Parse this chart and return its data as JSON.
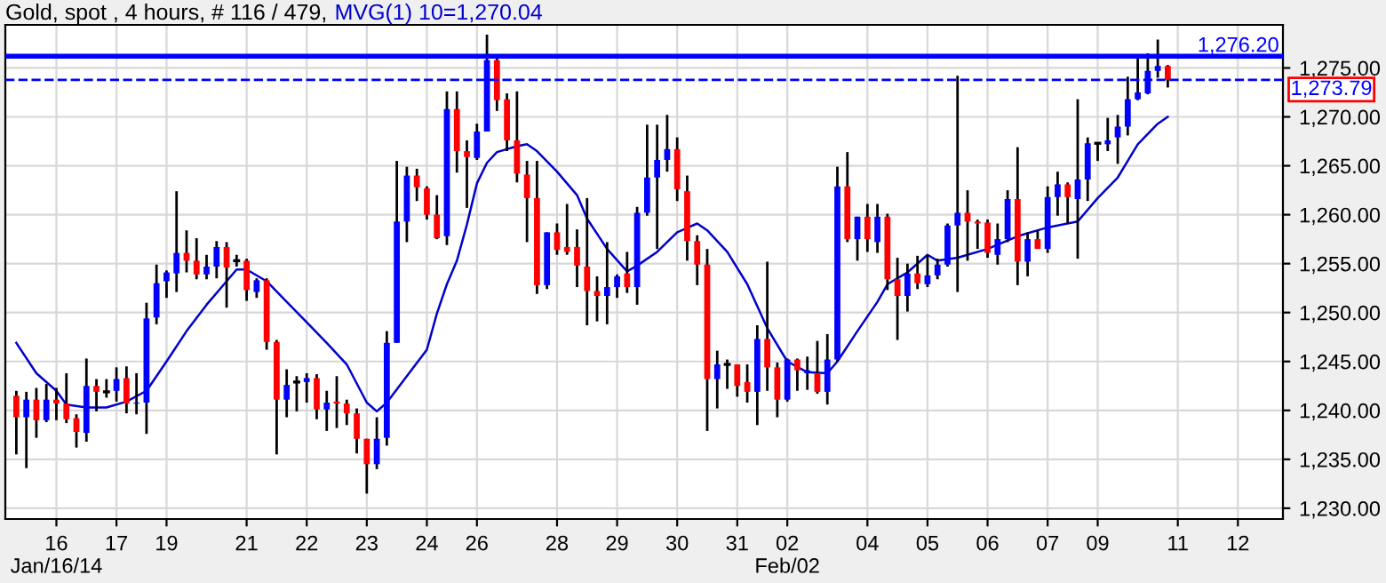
{
  "chart_data": {
    "type": "candlestick",
    "title": "Gold, spot , 4 hours, # 116 / 479,",
    "categories": [
      null,
      null,
      null,
      null,
      "16\nJan/16/14",
      null,
      null,
      null,
      null,
      null,
      "17",
      null,
      null,
      null,
      null,
      "19",
      null,
      null,
      null,
      null,
      null,
      null,
      null,
      "21",
      null,
      null,
      null,
      null,
      null,
      "22",
      null,
      null,
      null,
      null,
      null,
      "23",
      null,
      null,
      null,
      null,
      null,
      "24",
      null,
      null,
      null,
      null,
      "26",
      null,
      null,
      null,
      null,
      null,
      null,
      null,
      "28",
      null,
      null,
      null,
      null,
      null,
      "29",
      null,
      null,
      null,
      null,
      null,
      "30",
      null,
      null,
      null,
      null,
      null,
      "31",
      null,
      null,
      null,
      null,
      "02\nFeb/02",
      null,
      null,
      null,
      null,
      null,
      null,
      null,
      "04",
      null,
      null,
      null,
      null,
      null,
      "05",
      null,
      null,
      null,
      null,
      null,
      "06",
      null,
      null,
      null,
      null,
      null,
      "07",
      null,
      null,
      null,
      null,
      "09",
      null,
      null,
      null,
      null,
      null,
      null,
      null,
      "11",
      null,
      null,
      null,
      null,
      null,
      "12",
      null,
      null,
      null,
      null
    ],
    "ohlc": [
      [
        1241.5,
        1242.0,
        1235.5,
        1239.3
      ],
      [
        1239.3,
        1241.9,
        1234.1,
        1241.1
      ],
      [
        1241.1,
        1242.3,
        1237.2,
        1239.0
      ],
      [
        1239.0,
        1242.7,
        1238.8,
        1241.1
      ],
      [
        1241.1,
        1242.3,
        1239.0,
        1240.7
      ],
      [
        1240.7,
        1243.8,
        1238.7,
        1239.1
      ],
      [
        1239.2,
        1239.6,
        1236.2,
        1237.8
      ],
      [
        1237.7,
        1245.3,
        1236.8,
        1242.5
      ],
      [
        1242.5,
        1243.2,
        1239.9,
        1241.9
      ],
      [
        1241.9,
        1243.2,
        1241.3,
        1241.9
      ],
      [
        1242.0,
        1244.4,
        1240.9,
        1243.2
      ],
      [
        1243.3,
        1244.5,
        1239.7,
        1240.7
      ],
      [
        1240.7,
        1243.8,
        1239.6,
        1240.8
      ],
      [
        1240.8,
        1251.0,
        1237.6,
        1249.4
      ],
      [
        1249.5,
        1254.9,
        1248.8,
        1253.0
      ],
      [
        1253.2,
        1254.3,
        1251.5,
        1254.1
      ],
      [
        1254.0,
        1262.4,
        1252.1,
        1256.1
      ],
      [
        1256.1,
        1258.4,
        1254.1,
        1255.3
      ],
      [
        1255.3,
        1257.6,
        1253.4,
        1253.9
      ],
      [
        1253.9,
        1255.9,
        1253.4,
        1254.7
      ],
      [
        1254.7,
        1257.3,
        1253.5,
        1256.7
      ],
      [
        1256.7,
        1257.2,
        1250.5,
        1254.6
      ],
      [
        1255.3,
        1255.9,
        1254.7,
        1255.3
      ],
      [
        1255.3,
        1255.5,
        1251.2,
        1252.3
      ],
      [
        1252.1,
        1253.5,
        1251.5,
        1253.3
      ],
      [
        1253.3,
        1253.5,
        1246.2,
        1247.0
      ],
      [
        1247.0,
        1247.2,
        1235.5,
        1241.1
      ],
      [
        1241.1,
        1244.2,
        1239.3,
        1242.6
      ],
      [
        1242.9,
        1243.5,
        1239.9,
        1242.9
      ],
      [
        1242.9,
        1243.8,
        1240.8,
        1243.3
      ],
      [
        1243.3,
        1243.7,
        1239.1,
        1240.1
      ],
      [
        1240.1,
        1242.0,
        1237.9,
        1240.8
      ],
      [
        1240.9,
        1243.5,
        1238.2,
        1240.7
      ],
      [
        1240.7,
        1241.1,
        1238.5,
        1239.7
      ],
      [
        1239.7,
        1240.2,
        1235.6,
        1237.1
      ],
      [
        1237.1,
        1237.1,
        1231.5,
        1234.5
      ],
      [
        1234.5,
        1239.3,
        1234.0,
        1237.1
      ],
      [
        1237.2,
        1248.1,
        1236.4,
        1246.9
      ],
      [
        1246.9,
        1265.5,
        1246.9,
        1259.3
      ],
      [
        1259.3,
        1264.9,
        1257.2,
        1264.0
      ],
      [
        1264.0,
        1264.7,
        1261.4,
        1262.8
      ],
      [
        1262.7,
        1262.9,
        1259.5,
        1260.0
      ],
      [
        1260.0,
        1262.0,
        1257.5,
        1257.6
      ],
      [
        1257.8,
        1272.6,
        1256.9,
        1270.8
      ],
      [
        1270.8,
        1272.6,
        1264.3,
        1266.5
      ],
      [
        1266.5,
        1267.6,
        1260.7,
        1265.9
      ],
      [
        1265.8,
        1269.3,
        1265.6,
        1268.5
      ],
      [
        1268.5,
        1278.4,
        1268.5,
        1275.8
      ],
      [
        1275.8,
        1276.4,
        1270.6,
        1271.7
      ],
      [
        1271.8,
        1272.4,
        1266.5,
        1267.6
      ],
      [
        1267.6,
        1272.6,
        1263.3,
        1264.2
      ],
      [
        1264.1,
        1265.5,
        1257.2,
        1261.7
      ],
      [
        1261.7,
        1265.5,
        1251.9,
        1252.8
      ],
      [
        1252.8,
        1258.2,
        1252.4,
        1258.2
      ],
      [
        1258.2,
        1259.1,
        1255.9,
        1256.4
      ],
      [
        1256.7,
        1261.1,
        1255.9,
        1256.2
      ],
      [
        1256.7,
        1258.5,
        1252.6,
        1254.8
      ],
      [
        1254.7,
        1261.7,
        1248.7,
        1252.2
      ],
      [
        1252.2,
        1253.7,
        1249.1,
        1251.7
      ],
      [
        1251.7,
        1257.2,
        1248.8,
        1252.6
      ],
      [
        1252.6,
        1253.9,
        1251.5,
        1253.7
      ],
      [
        1254.0,
        1256.2,
        1252.0,
        1252.6
      ],
      [
        1252.6,
        1260.8,
        1250.8,
        1260.2
      ],
      [
        1260.2,
        1269.2,
        1259.9,
        1263.8
      ],
      [
        1263.8,
        1269.2,
        1256.5,
        1265.6
      ],
      [
        1265.6,
        1270.2,
        1264.4,
        1266.7
      ],
      [
        1266.7,
        1267.9,
        1261.4,
        1262.6
      ],
      [
        1262.4,
        1264.0,
        1255.3,
        1257.3
      ],
      [
        1257.3,
        1257.9,
        1252.8,
        1254.9
      ],
      [
        1254.9,
        1256.5,
        1237.9,
        1243.2
      ],
      [
        1243.2,
        1246.1,
        1240.2,
        1244.7
      ],
      [
        1244.7,
        1245.2,
        1242.2,
        1244.7
      ],
      [
        1244.7,
        1244.7,
        1241.4,
        1242.5
      ],
      [
        1242.9,
        1244.7,
        1240.8,
        1241.9
      ],
      [
        1241.9,
        1248.7,
        1238.5,
        1247.3
      ],
      [
        1247.3,
        1255.2,
        1242.0,
        1244.4
      ],
      [
        1244.4,
        1244.9,
        1239.3,
        1241.1
      ],
      [
        1241.1,
        1245.3,
        1240.9,
        1245.2
      ],
      [
        1245.2,
        1245.3,
        1242.0,
        1244.1
      ],
      [
        1243.8,
        1245.5,
        1242.1,
        1244.1
      ],
      [
        1243.8,
        1247.1,
        1241.7,
        1241.9
      ],
      [
        1241.9,
        1247.8,
        1240.6,
        1245.2
      ],
      [
        1245.2,
        1264.9,
        1245.0,
        1262.9
      ],
      [
        1262.9,
        1266.4,
        1257.2,
        1257.5
      ],
      [
        1257.5,
        1259.8,
        1255.3,
        1259.8
      ],
      [
        1259.8,
        1261.1,
        1256.2,
        1257.5
      ],
      [
        1257.2,
        1261.1,
        1256.1,
        1259.8
      ],
      [
        1259.8,
        1260.1,
        1252.3,
        1253.4
      ],
      [
        1253.4,
        1255.6,
        1247.2,
        1251.7
      ],
      [
        1251.7,
        1255.0,
        1250.1,
        1254.0
      ],
      [
        1254.0,
        1255.8,
        1252.4,
        1253.0
      ],
      [
        1252.9,
        1255.9,
        1252.6,
        1253.8
      ],
      [
        1253.8,
        1255.5,
        1253.4,
        1254.9
      ],
      [
        1254.9,
        1259.1,
        1254.7,
        1258.9
      ],
      [
        1258.9,
        1274.2,
        1252.1,
        1260.2
      ],
      [
        1260.2,
        1262.5,
        1255.3,
        1259.3
      ],
      [
        1259.3,
        1259.5,
        1256.5,
        1259.1
      ],
      [
        1259.2,
        1259.5,
        1255.6,
        1256.1
      ],
      [
        1255.9,
        1259.1,
        1254.9,
        1257.5
      ],
      [
        1257.5,
        1262.5,
        1257.2,
        1261.6
      ],
      [
        1261.6,
        1266.9,
        1252.8,
        1255.2
      ],
      [
        1255.2,
        1258.2,
        1253.7,
        1257.5
      ],
      [
        1257.5,
        1258.4,
        1256.5,
        1256.5
      ],
      [
        1256.5,
        1262.9,
        1256.1,
        1261.8
      ],
      [
        1261.8,
        1264.4,
        1259.9,
        1263.1
      ],
      [
        1263.1,
        1263.3,
        1259.1,
        1261.8
      ],
      [
        1261.6,
        1271.8,
        1255.5,
        1263.6
      ],
      [
        1263.6,
        1267.9,
        1261.4,
        1267.3
      ],
      [
        1267.3,
        1267.3,
        1265.5,
        1267.3
      ],
      [
        1267.2,
        1269.9,
        1266.5,
        1267.6
      ],
      [
        1267.9,
        1270.2,
        1265.2,
        1269.0
      ],
      [
        1269.0,
        1274.1,
        1268.1,
        1271.8
      ],
      [
        1271.8,
        1276.2,
        1271.7,
        1272.5
      ],
      [
        1272.4,
        1276.5,
        1272.3,
        1274.7
      ],
      [
        1274.7,
        1277.9,
        1274.0,
        1275.2
      ],
      [
        1275.2,
        1275.3,
        1273.0,
        1273.8
      ],
      null,
      null,
      null,
      null,
      null,
      null,
      null,
      null,
      null,
      null,
      null
    ],
    "colors": [
      "#ff0000",
      "#0000ff",
      "#ff0000",
      "#0000ff",
      "#ff0000",
      "#ff0000",
      "#ff0000",
      "#0000ff",
      "#ff0000",
      "#000000",
      "#0000ff",
      "#ff0000",
      "#0000ff",
      "#0000ff",
      "#0000ff",
      "#0000ff",
      "#0000ff",
      "#ff0000",
      "#ff0000",
      "#0000ff",
      "#0000ff",
      "#ff0000",
      "#000000",
      "#ff0000",
      "#0000ff",
      "#ff0000",
      "#ff0000",
      "#0000ff",
      "#000000",
      "#0000ff",
      "#ff0000",
      "#0000ff",
      "#ff0000",
      "#ff0000",
      "#ff0000",
      "#ff0000",
      "#0000ff",
      "#0000ff",
      "#0000ff",
      "#0000ff",
      "#ff0000",
      "#ff0000",
      "#ff0000",
      "#0000ff",
      "#ff0000",
      "#ff0000",
      "#0000ff",
      "#0000ff",
      "#ff0000",
      "#ff0000",
      "#ff0000",
      "#ff0000",
      "#ff0000",
      "#0000ff",
      "#ff0000",
      "#ff0000",
      "#ff0000",
      "#ff0000",
      "#ff0000",
      "#0000ff",
      "#0000ff",
      "#ff0000",
      "#0000ff",
      "#0000ff",
      "#0000ff",
      "#0000ff",
      "#ff0000",
      "#ff0000",
      "#ff0000",
      "#ff0000",
      "#0000ff",
      "#000000",
      "#ff0000",
      "#ff0000",
      "#0000ff",
      "#ff0000",
      "#ff0000",
      "#0000ff",
      "#ff0000",
      "#0000ff",
      "#ff0000",
      "#0000ff",
      "#0000ff",
      "#ff0000",
      "#0000ff",
      "#ff0000",
      "#0000ff",
      "#ff0000",
      "#ff0000",
      "#0000ff",
      "#ff0000",
      "#0000ff",
      "#0000ff",
      "#0000ff",
      "#0000ff",
      "#ff0000",
      "#ff0000",
      "#ff0000",
      "#0000ff",
      "#0000ff",
      "#ff0000",
      "#0000ff",
      "#ff0000",
      "#0000ff",
      "#0000ff",
      "#ff0000",
      "#0000ff",
      "#0000ff",
      "#000000",
      "#0000ff",
      "#0000ff",
      "#0000ff",
      "#0000ff",
      "#0000ff",
      "#0000ff",
      "#ff0000",
      null,
      null,
      null,
      null,
      null,
      null,
      null,
      null,
      null,
      null,
      null
    ],
    "series": [
      {
        "type": "line",
        "name": "MVG(1) 10=1,270.04",
        "color": "#0000cc",
        "values": [
          1246.9,
          null,
          1243.8,
          null,
          1242.0,
          1240.6,
          null,
          1240.3,
          null,
          1240.3,
          null,
          1240.9,
          null,
          1242.0,
          null,
          1245.0,
          null,
          1248.1,
          null,
          1250.8,
          null,
          1253.2,
          1254.4,
          1254.4,
          null,
          1253.2,
          null,
          1251.1,
          null,
          1249.0,
          null,
          1246.9,
          null,
          1244.7,
          null,
          1240.8,
          1239.9,
          1240.8,
          null,
          1243.5,
          null,
          1246.2,
          1249.9,
          1252.9,
          1255.3,
          1259.0,
          1263.2,
          1265.3,
          1266.4,
          null,
          1267.0,
          1267.2,
          1266.5,
          null,
          1264.4,
          null,
          1262.0,
          1259.6,
          null,
          1256.5,
          null,
          1254.2,
          1254.8,
          null,
          1256.2,
          null,
          1258.2,
          null,
          1259.1,
          1258.4,
          null,
          1256.2,
          null,
          1252.9,
          null,
          1248.4,
          null,
          1245.0,
          null,
          1243.9,
          null,
          1243.8,
          1245.0,
          null,
          1248.1,
          null,
          1251.1,
          1252.9,
          null,
          1254.1,
          null,
          1255.9,
          1255.3,
          null,
          1255.6,
          null,
          null,
          1256.5,
          null,
          null,
          1257.8,
          null,
          null,
          1258.7,
          null,
          null,
          1259.3,
          null,
          1261.7,
          null,
          1263.8,
          null,
          1267.2,
          null,
          1269.3,
          1270.0,
          null,
          null,
          null,
          null,
          null,
          null,
          null,
          null,
          null,
          null,
          null
        ]
      }
    ],
    "ylim": [
      1228.9,
      1279.4
    ],
    "yticks": [
      {
        "value": 1230,
        "label": "1,230.00"
      },
      {
        "value": 1235,
        "label": "1,235.00"
      },
      {
        "value": 1240,
        "label": "1,240.00"
      },
      {
        "value": 1245,
        "label": "1,245.00"
      },
      {
        "value": 1250,
        "label": "1,250.00"
      },
      {
        "value": 1255,
        "label": "1,255.00"
      },
      {
        "value": 1260,
        "label": "1,260.00"
      },
      {
        "value": 1265,
        "label": "1,265.00"
      },
      {
        "value": 1270,
        "label": "1,270.00"
      },
      {
        "value": 1275,
        "label": "1,275.00"
      }
    ],
    "grid": true,
    "ref_lines": [
      {
        "axis": "y",
        "value": 1276.2,
        "label": "1,276.20",
        "color": "#0000ff",
        "line_style": "solid"
      },
      {
        "axis": "y",
        "value": 1273.79,
        "label": "1,273.79",
        "color": "#0000ff",
        "line_style": "dashed"
      }
    ]
  }
}
